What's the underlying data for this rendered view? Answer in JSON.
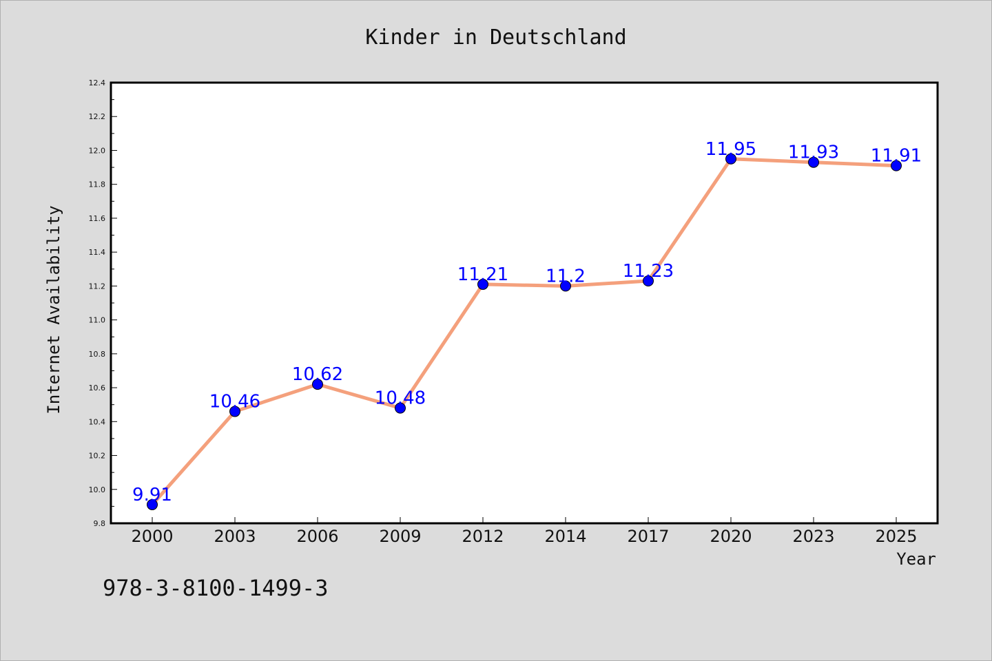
{
  "chart_data": {
    "type": "line",
    "title": "Kinder in Deutschland",
    "xlabel": "Year",
    "ylabel": "Internet Availability",
    "categories": [
      "2000",
      "2003",
      "2006",
      "2009",
      "2012",
      "2014",
      "2017",
      "2020",
      "2023",
      "2025"
    ],
    "series": [
      {
        "values": [
          9.91,
          10.46,
          10.62,
          10.48,
          11.21,
          11.2,
          11.23,
          11.95,
          11.93,
          11.91
        ],
        "data_labels": [
          "9.91",
          "10.46",
          "10.62",
          "10.48",
          "11.21",
          "11.2",
          "11.23",
          "11.95",
          "11.93",
          "11.91"
        ],
        "line_color": "#f4a07c",
        "marker_color": "#0000ff"
      }
    ],
    "ylim": [
      9.8,
      12.4
    ],
    "yticks": [
      "9.8",
      "10.0",
      "10.2",
      "10.4",
      "10.6",
      "10.8",
      "11.0",
      "11.2",
      "11.4",
      "11.6",
      "11.8",
      "12.0",
      "12.2",
      "12.4"
    ],
    "grid": false,
    "legend": "none",
    "annotation": "978-3-8100-1499-3",
    "background_color": "#dcdcdc",
    "plot_background_color": "#ffffff"
  }
}
